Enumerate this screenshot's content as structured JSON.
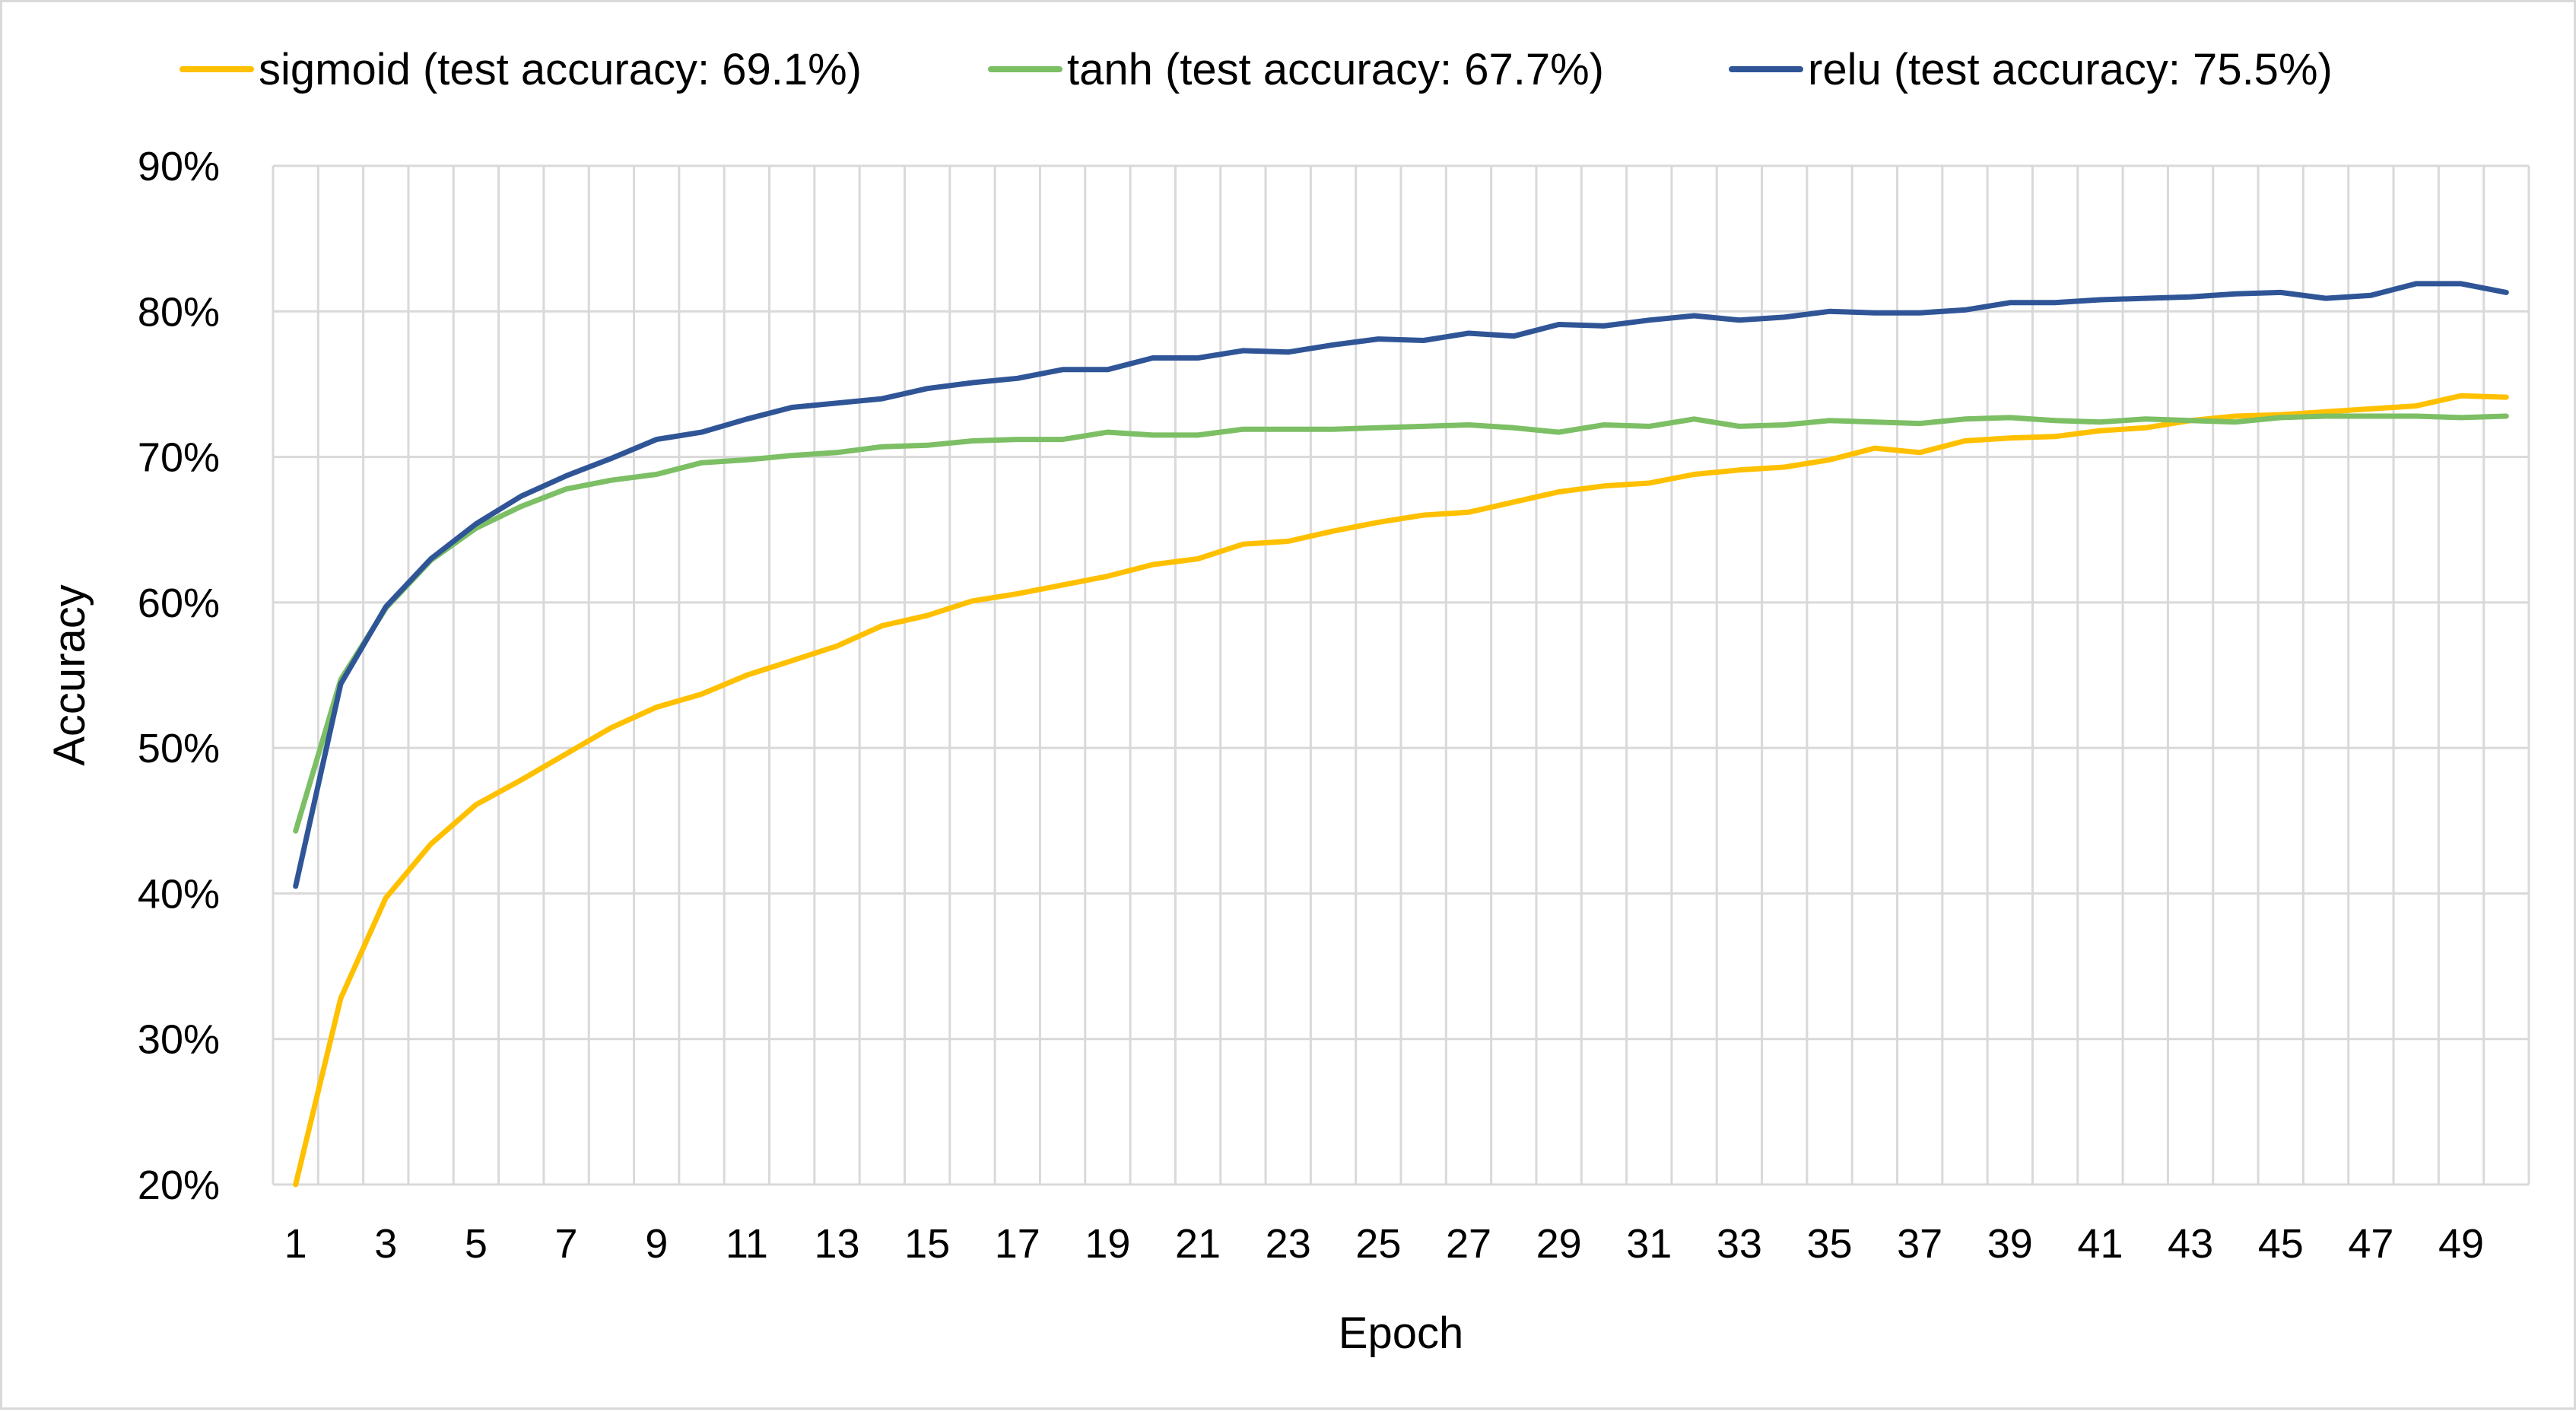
{
  "chart_data": {
    "type": "line",
    "xlabel": "Epoch",
    "ylabel": "Accuracy",
    "ylim": [
      0.2,
      0.9
    ],
    "y_ticks": [
      "20%",
      "30%",
      "40%",
      "50%",
      "60%",
      "70%",
      "80%",
      "90%"
    ],
    "y_tick_values": [
      0.2,
      0.3,
      0.4,
      0.5,
      0.6,
      0.7,
      0.8,
      0.9
    ],
    "x_tick_labels": [
      "1",
      "3",
      "5",
      "7",
      "9",
      "11",
      "13",
      "15",
      "17",
      "19",
      "21",
      "23",
      "25",
      "27",
      "29",
      "31",
      "33",
      "35",
      "37",
      "39",
      "41",
      "43",
      "45",
      "47",
      "49"
    ],
    "grid": "on",
    "legend_position": "top",
    "x": [
      1,
      2,
      3,
      4,
      5,
      6,
      7,
      8,
      9,
      10,
      11,
      12,
      13,
      14,
      15,
      16,
      17,
      18,
      19,
      20,
      21,
      22,
      23,
      24,
      25,
      26,
      27,
      28,
      29,
      30,
      31,
      32,
      33,
      34,
      35,
      36,
      37,
      38,
      39,
      40,
      41,
      42,
      43,
      44,
      45,
      46,
      47,
      48,
      49,
      50
    ],
    "series": [
      {
        "name": "sigmoid (test accuracy: 69.1%)",
        "color": "#FFC000",
        "values": [
          0.2,
          0.328,
          0.397,
          0.434,
          0.461,
          0.478,
          0.496,
          0.514,
          0.528,
          0.537,
          0.55,
          0.56,
          0.57,
          0.584,
          0.591,
          0.601,
          0.606,
          0.612,
          0.618,
          0.626,
          0.63,
          0.64,
          0.642,
          0.649,
          0.655,
          0.66,
          0.662,
          0.669,
          0.676,
          0.68,
          0.682,
          0.688,
          0.691,
          0.693,
          0.698,
          0.706,
          0.703,
          0.711,
          0.713,
          0.714,
          0.718,
          0.72,
          0.725,
          0.728,
          0.729,
          0.731,
          0.733,
          0.735,
          0.742,
          0.741
        ]
      },
      {
        "name": "tanh (test accuracy: 67.7%)",
        "color": "#7CBF65",
        "values": [
          0.443,
          0.547,
          0.596,
          0.629,
          0.651,
          0.666,
          0.678,
          0.684,
          0.688,
          0.696,
          0.698,
          0.701,
          0.703,
          0.707,
          0.708,
          0.711,
          0.712,
          0.712,
          0.717,
          0.715,
          0.715,
          0.719,
          0.719,
          0.719,
          0.72,
          0.721,
          0.722,
          0.72,
          0.717,
          0.722,
          0.721,
          0.726,
          0.721,
          0.722,
          0.725,
          0.724,
          0.723,
          0.726,
          0.727,
          0.725,
          0.724,
          0.726,
          0.725,
          0.724,
          0.727,
          0.728,
          0.728,
          0.728,
          0.727,
          0.728
        ]
      },
      {
        "name": "relu (test accuracy: 75.5%)",
        "color": "#2F5597",
        "values": [
          0.405,
          0.544,
          0.597,
          0.63,
          0.654,
          0.673,
          0.687,
          0.699,
          0.712,
          0.717,
          0.726,
          0.734,
          0.737,
          0.74,
          0.747,
          0.751,
          0.754,
          0.76,
          0.76,
          0.768,
          0.768,
          0.773,
          0.772,
          0.777,
          0.781,
          0.78,
          0.785,
          0.783,
          0.791,
          0.79,
          0.794,
          0.797,
          0.794,
          0.796,
          0.8,
          0.799,
          0.799,
          0.801,
          0.806,
          0.806,
          0.808,
          0.809,
          0.81,
          0.812,
          0.813,
          0.809,
          0.811,
          0.819,
          0.819,
          0.813
        ]
      }
    ]
  }
}
